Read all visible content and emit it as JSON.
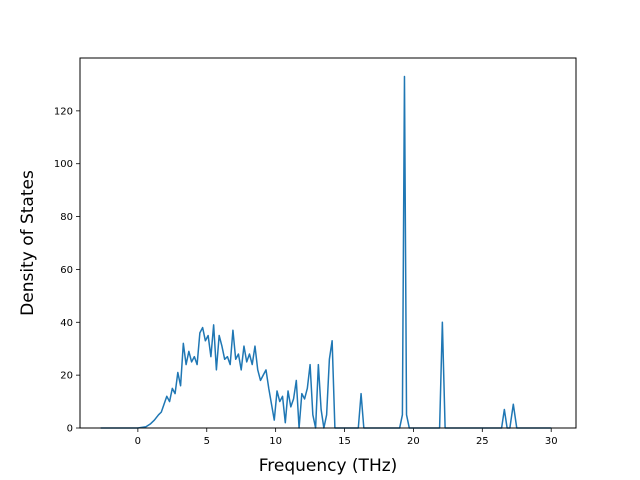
{
  "chart_data": {
    "type": "line",
    "title": "",
    "xlabel": "Frequency (THz)",
    "ylabel": "Density of States",
    "xlim": [
      -4.2,
      31.8
    ],
    "ylim": [
      0,
      140
    ],
    "xticks": [
      0,
      5,
      10,
      15,
      20,
      25,
      30
    ],
    "yticks": [
      0,
      20,
      40,
      60,
      80,
      100,
      120
    ],
    "grid": false,
    "legend": "none",
    "series": [
      {
        "color": "#1f77b4",
        "x": [
          -2.7,
          -1.0,
          0.0,
          0.6,
          0.9,
          1.2,
          1.5,
          1.7,
          1.9,
          2.1,
          2.3,
          2.5,
          2.7,
          2.9,
          3.1,
          3.3,
          3.5,
          3.7,
          3.9,
          4.1,
          4.3,
          4.5,
          4.7,
          4.9,
          5.1,
          5.3,
          5.5,
          5.7,
          5.9,
          6.1,
          6.3,
          6.5,
          6.7,
          6.9,
          7.1,
          7.3,
          7.5,
          7.7,
          7.9,
          8.1,
          8.3,
          8.5,
          8.7,
          8.9,
          9.1,
          9.3,
          9.5,
          9.7,
          9.9,
          10.1,
          10.3,
          10.5,
          10.7,
          10.9,
          11.1,
          11.3,
          11.5,
          11.7,
          11.9,
          12.1,
          12.3,
          12.5,
          12.7,
          12.9,
          13.1,
          13.3,
          13.5,
          13.7,
          13.9,
          14.1,
          14.3,
          14.5,
          14.7,
          15.0,
          15.5,
          16.0,
          16.2,
          16.4,
          16.6,
          17.0,
          18.0,
          19.0,
          19.2,
          19.35,
          19.5,
          19.7,
          20.0,
          21.0,
          21.9,
          22.1,
          22.3,
          23.0,
          25.0,
          26.4,
          26.6,
          26.8,
          27.0,
          27.25,
          27.5,
          28.0,
          29.0,
          30.0
        ],
        "y": [
          0,
          0,
          0,
          0.5,
          1.5,
          3,
          5,
          6,
          9,
          12,
          10,
          15,
          13,
          21,
          16,
          32,
          24,
          29,
          25,
          27,
          24,
          36,
          38,
          33,
          35,
          27,
          39,
          22,
          35,
          31,
          26,
          27,
          24,
          37,
          26,
          28,
          22,
          31,
          25,
          28,
          24,
          31,
          22,
          18,
          20,
          22,
          15,
          9,
          3,
          14,
          10,
          12,
          2,
          14,
          8,
          11,
          18,
          0,
          13,
          11,
          15,
          24,
          5,
          0,
          24,
          7,
          0,
          5,
          26,
          33,
          0,
          0,
          0,
          0,
          0,
          0,
          13,
          0,
          0,
          0,
          0,
          0,
          5,
          133,
          5,
          0,
          0,
          0,
          0,
          40,
          0,
          0,
          0,
          0,
          7,
          0,
          0,
          9,
          0,
          0,
          0,
          0
        ]
      }
    ]
  }
}
